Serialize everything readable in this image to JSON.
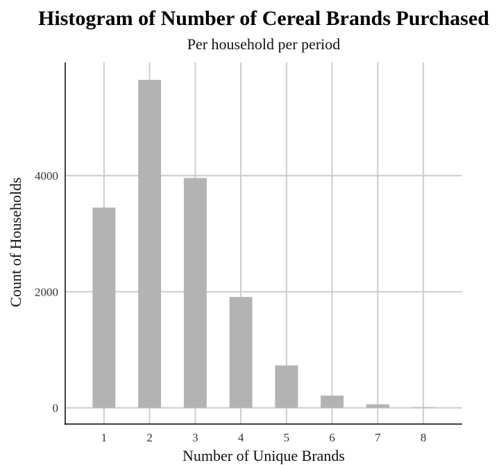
{
  "chart_data": {
    "type": "bar",
    "title": "Histogram of Number of Cereal Brands Purchased",
    "subtitle": "Per household per period",
    "xlabel": "Number of Unique Brands",
    "ylabel": "Count of Households",
    "categories": [
      "1",
      "2",
      "3",
      "4",
      "5",
      "6",
      "7",
      "8"
    ],
    "x": [
      1,
      2,
      3,
      4,
      5,
      6,
      7,
      8
    ],
    "values": [
      3450,
      5650,
      3960,
      1910,
      730,
      210,
      60,
      10
    ],
    "xlim": [
      0.15,
      8.85
    ],
    "ylim": [
      -280,
      5950
    ],
    "yticks": [
      0,
      2000,
      4000
    ],
    "ytick_labels": [
      "0",
      "2000",
      "4000"
    ],
    "grid": true,
    "legend": "none",
    "bar_color": "#b3b3b3",
    "grid_color": "#cccccc",
    "axis_color": "#000000"
  }
}
